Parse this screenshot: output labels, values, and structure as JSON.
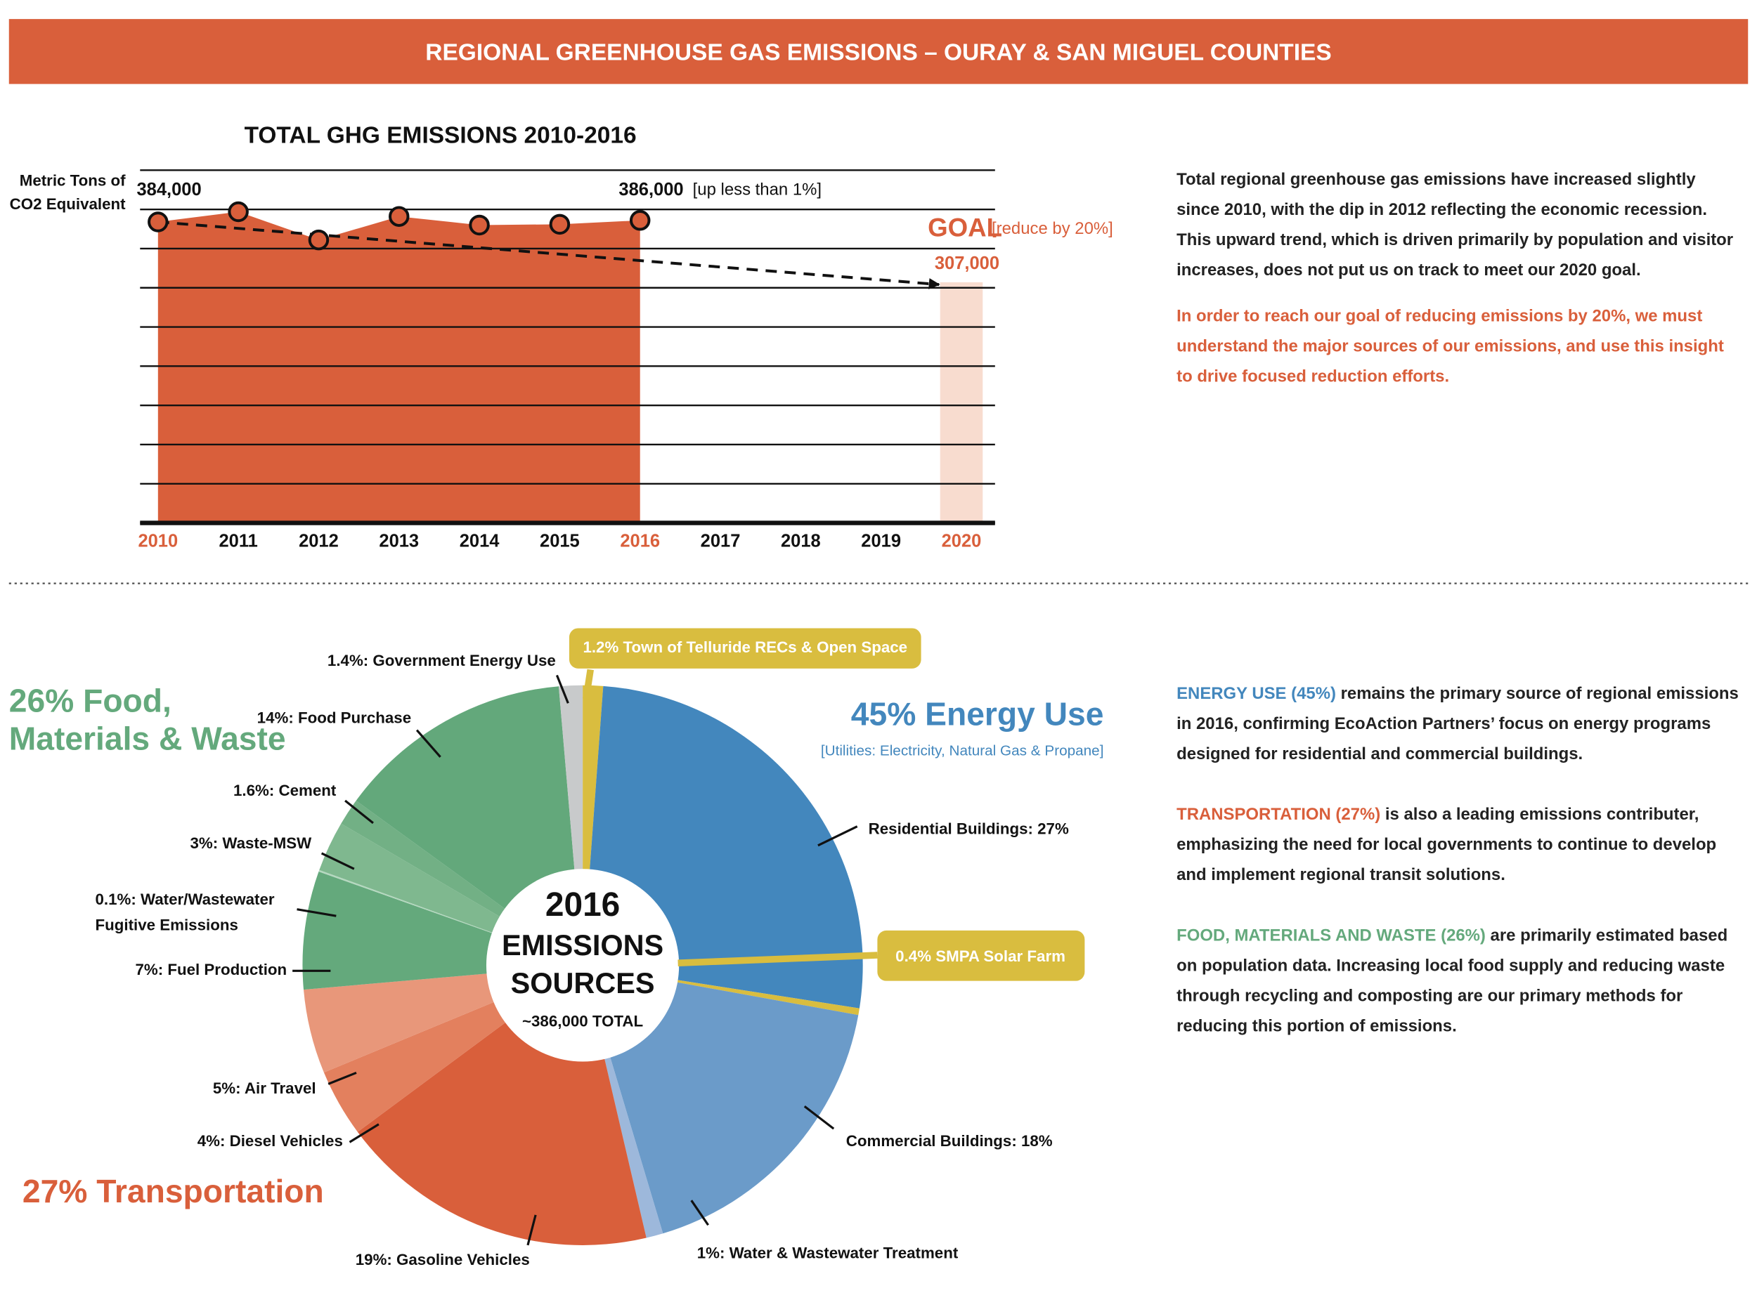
{
  "header": {
    "title": "REGIONAL GREENHOUSE GAS EMISSIONS – OURAY & SAN MIGUEL COUNTIES",
    "color": "#d95f3b"
  },
  "chart_data": [
    {
      "type": "line",
      "title": "TOTAL GHG EMISSIONS 2010-2016",
      "ylabel": "Metric Tons of\nCO2 Equivalent",
      "categories": [
        "2010",
        "2011",
        "2012",
        "2013",
        "2014",
        "2015",
        "2016",
        "2017",
        "2018",
        "2019",
        "2020"
      ],
      "category_colors": [
        "#d95f3b",
        "#111111",
        "#111111",
        "#111111",
        "#111111",
        "#111111",
        "#d95f3b",
        "#111111",
        "#111111",
        "#111111",
        "#d95f3b"
      ],
      "series": [
        {
          "color": "#d95f3b",
          "values": [
            384000,
            397000,
            361000,
            391000,
            380000,
            381000,
            386000,
            null,
            null,
            null,
            null
          ],
          "value_labels": [
            "384,000",
            null,
            null,
            null,
            null,
            null,
            "386,000",
            null,
            null,
            null,
            null
          ]
        },
        {
          "name": "GOAL",
          "color": "#f8dccf",
          "label_color": "#d95f3b",
          "values": [
            null,
            null,
            null,
            null,
            null,
            null,
            null,
            null,
            null,
            null,
            307000
          ],
          "value_labels": [
            null,
            null,
            null,
            null,
            null,
            null,
            null,
            null,
            null,
            null,
            "307,000"
          ]
        }
      ],
      "annotations": [
        "[up less than 1%]",
        "[reduce by 20%]"
      ],
      "ylim": [
        0,
        450000
      ],
      "yticks": [
        0,
        50000,
        100000,
        150000,
        200000,
        250000,
        300000,
        350000,
        400000,
        450000
      ],
      "grid": true
    },
    {
      "type": "pie",
      "center_lines": [
        "2016",
        "EMISSIONS",
        "SOURCES"
      ],
      "center_subtitle": "~386,000 TOTAL",
      "values": [
        1.2,
        27,
        0.4,
        18,
        1,
        19,
        4,
        5,
        7,
        0.1,
        3,
        1.6,
        14,
        1.4
      ],
      "value_labels": [
        "1.2% Town of Telluride RECs & Open Space",
        "Residential Buildings: 27%",
        "0.4% SMPA Solar Farm",
        "Commercial Buildings: 18%",
        "1%: Water & Wastewater Treatment",
        "19%: Gasoline Vehicles",
        "4%: Diesel Vehicles",
        "5%: Air Travel",
        "7%: Fuel Production",
        "0.1%: Water/Wastewater\nFugitive Emissions",
        "3%: Waste-MSW",
        "1.6%: Cement",
        "14%: Food Purchase",
        "1.4%: Government Energy Use"
      ],
      "colors": [
        "#d9bd3f",
        "#4387bd",
        "#d9bd3f",
        "#6b9bc9",
        "#9db8db",
        "#d95f3b",
        "#e3805e",
        "#e8977a",
        "#64a97c",
        "#b5d8c0",
        "#7fb88f",
        "#72b085",
        "#63a87b",
        "#c8cacb"
      ],
      "groups": [
        {
          "label": "45% Energy Use",
          "sublabel": "[Utilities: Electricity, Natural Gas & Propane]",
          "color": "#4387bd"
        },
        {
          "label": "26% Food,\nMaterials & Waste",
          "color": "#64a97c"
        },
        {
          "label": "27% Transportation",
          "color": "#d95f3b"
        }
      ]
    }
  ],
  "text_top": {
    "paragraphs": [
      {
        "text": "Total regional greenhouse gas emissions have increased slightly since 2010, with the dip in 2012 reflecting the economic recession. This upward trend, which is driven primarily by population and visitor increases, does not put us on track to meet our 2020 goal.",
        "color": "#222222"
      },
      {
        "text": "In order to reach our goal of reducing emissions by 20%, we must understand the major sources of our emissions, and use this insight to drive focused reduction efforts.",
        "color": "#d95f3b"
      }
    ]
  },
  "text_bottom": {
    "paragraphs": [
      {
        "lead": "ENERGY USE (45%)",
        "color": "#4387bd",
        "text": "remains the primary source of regional emissions in 2016, confirming EcoAction Partners’ focus on energy programs designed for residential and commercial buildings."
      },
      {
        "lead": "TRANSPORTATION (27%)",
        "color": "#d95f3b",
        "text": "is also a leading emissions contributer, emphasizing the need for local governments to continue to develop and implement regional transit solutions."
      },
      {
        "lead": "FOOD, MATERIALS AND WASTE (26%)",
        "color": "#64a97c",
        "text": "are primarily estimated based on population data. Increasing local food supply and reducing waste through recycling and composting are our primary methods for reducing this portion of emissions."
      }
    ]
  }
}
